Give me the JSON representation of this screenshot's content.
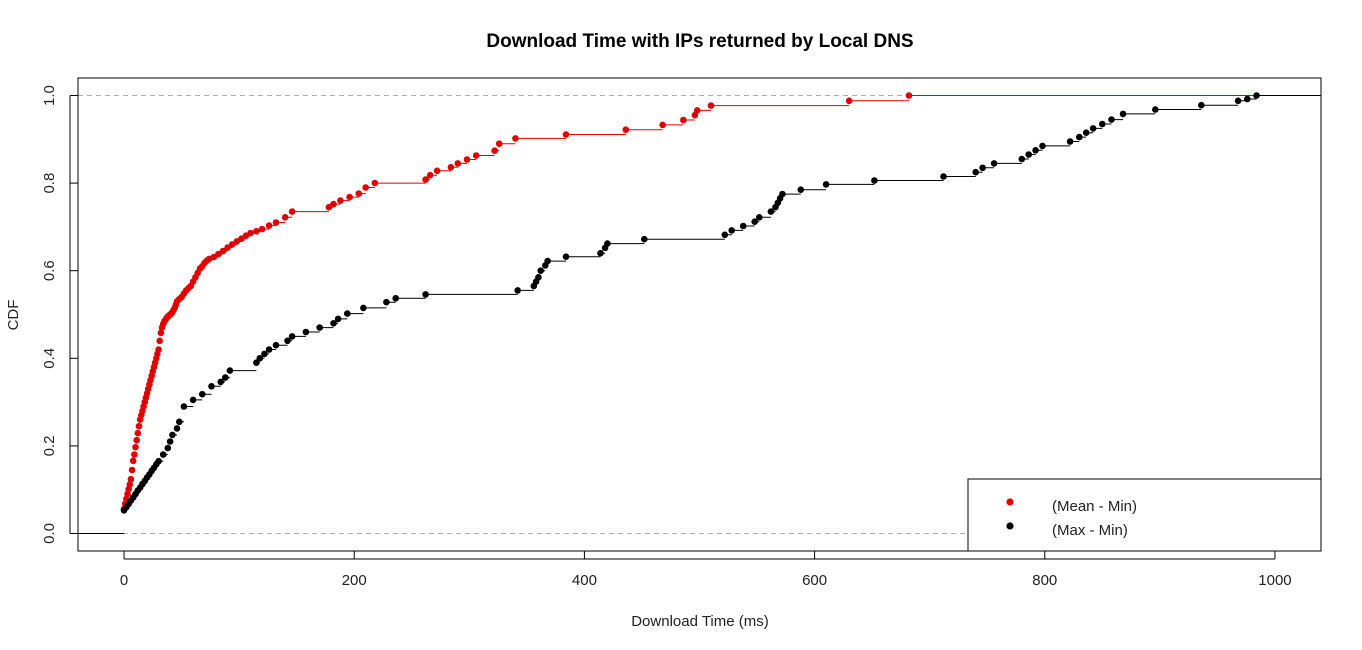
{
  "chart_data": {
    "type": "scatter",
    "subtype": "empirical CDF step plot",
    "title": "Download Time with IPs returned by Local DNS",
    "xlabel": "Download Time (ms)",
    "ylabel": "CDF",
    "xlim": [
      -40,
      1040
    ],
    "ylim": [
      -0.04,
      1.04
    ],
    "xticks": [
      0,
      200,
      400,
      600,
      800,
      1000
    ],
    "yticks": [
      0.0,
      0.2,
      0.4,
      0.6,
      0.8,
      1.0
    ],
    "reference_lines_y": [
      0,
      1
    ],
    "legend_position": "bottom-right",
    "series": [
      {
        "name": "(Mean - Min)",
        "color": "#e00000",
        "x": [
          0,
          1,
          2,
          3,
          4,
          5,
          6,
          7,
          8,
          9,
          10,
          11,
          12,
          13,
          14,
          15,
          16,
          17,
          18,
          19,
          20,
          21,
          22,
          23,
          24,
          25,
          26,
          27,
          28,
          29,
          30,
          31,
          32,
          33,
          34,
          35,
          36,
          37,
          38,
          39,
          40,
          41,
          42,
          43,
          44,
          45,
          46,
          48,
          50,
          52,
          54,
          56,
          58,
          60,
          62,
          64,
          66,
          68,
          70,
          72,
          74,
          78,
          82,
          86,
          90,
          94,
          98,
          102,
          106,
          110,
          115,
          120,
          126,
          132,
          140,
          146,
          178,
          182,
          188,
          196,
          204,
          210,
          218,
          262,
          266,
          272,
          284,
          290,
          298,
          306,
          322,
          326,
          340,
          384,
          436,
          468,
          486,
          496,
          498,
          510,
          630,
          682
        ],
        "y": [
          0.056,
          0.068,
          0.079,
          0.09,
          0.101,
          0.112,
          0.124,
          0.145,
          0.166,
          0.18,
          0.197,
          0.213,
          0.229,
          0.245,
          0.26,
          0.27,
          0.28,
          0.29,
          0.3,
          0.31,
          0.32,
          0.33,
          0.34,
          0.35,
          0.36,
          0.37,
          0.38,
          0.39,
          0.4,
          0.41,
          0.42,
          0.44,
          0.458,
          0.47,
          0.478,
          0.484,
          0.488,
          0.492,
          0.495,
          0.497,
          0.5,
          0.502,
          0.505,
          0.51,
          0.515,
          0.522,
          0.53,
          0.535,
          0.54,
          0.548,
          0.555,
          0.56,
          0.565,
          0.575,
          0.585,
          0.595,
          0.605,
          0.61,
          0.618,
          0.623,
          0.627,
          0.631,
          0.638,
          0.645,
          0.653,
          0.66,
          0.667,
          0.673,
          0.68,
          0.686,
          0.69,
          0.695,
          0.703,
          0.71,
          0.722,
          0.735,
          0.745,
          0.752,
          0.76,
          0.768,
          0.776,
          0.79,
          0.8,
          0.808,
          0.818,
          0.828,
          0.836,
          0.845,
          0.854,
          0.863,
          0.874,
          0.89,
          0.902,
          0.911,
          0.922,
          0.933,
          0.944,
          0.955,
          0.966,
          0.977,
          0.988,
          1.0
        ]
      },
      {
        "name": "(Max - Min)",
        "color": "#000000",
        "x": [
          0,
          2,
          4,
          6,
          8,
          10,
          12,
          14,
          16,
          18,
          20,
          22,
          24,
          26,
          28,
          30,
          34,
          38,
          40,
          42,
          46,
          48,
          52,
          60,
          68,
          76,
          84,
          88,
          92,
          115,
          118,
          122,
          126,
          132,
          142,
          146,
          158,
          170,
          182,
          186,
          194,
          208,
          228,
          236,
          262,
          342,
          356,
          358,
          360,
          362,
          366,
          368,
          384,
          414,
          418,
          420,
          452,
          522,
          528,
          538,
          548,
          552,
          562,
          566,
          568,
          570,
          572,
          588,
          610,
          652,
          712,
          740,
          746,
          756,
          780,
          786,
          792,
          798,
          822,
          830,
          836,
          842,
          850,
          858,
          868,
          896,
          936,
          968,
          976,
          984
        ],
        "y": [
          0.053,
          0.06,
          0.067,
          0.075,
          0.082,
          0.09,
          0.098,
          0.105,
          0.113,
          0.12,
          0.128,
          0.135,
          0.143,
          0.15,
          0.158,
          0.165,
          0.18,
          0.195,
          0.21,
          0.225,
          0.24,
          0.255,
          0.29,
          0.305,
          0.318,
          0.336,
          0.346,
          0.356,
          0.372,
          0.39,
          0.4,
          0.41,
          0.42,
          0.43,
          0.44,
          0.45,
          0.46,
          0.47,
          0.48,
          0.49,
          0.502,
          0.515,
          0.528,
          0.537,
          0.546,
          0.555,
          0.565,
          0.575,
          0.585,
          0.6,
          0.612,
          0.622,
          0.632,
          0.64,
          0.652,
          0.662,
          0.672,
          0.682,
          0.692,
          0.702,
          0.712,
          0.722,
          0.735,
          0.745,
          0.755,
          0.765,
          0.775,
          0.785,
          0.797,
          0.806,
          0.815,
          0.825,
          0.835,
          0.845,
          0.855,
          0.865,
          0.875,
          0.885,
          0.895,
          0.905,
          0.915,
          0.925,
          0.935,
          0.945,
          0.958,
          0.968,
          0.978,
          0.988,
          0.992,
          1.0
        ]
      }
    ]
  }
}
